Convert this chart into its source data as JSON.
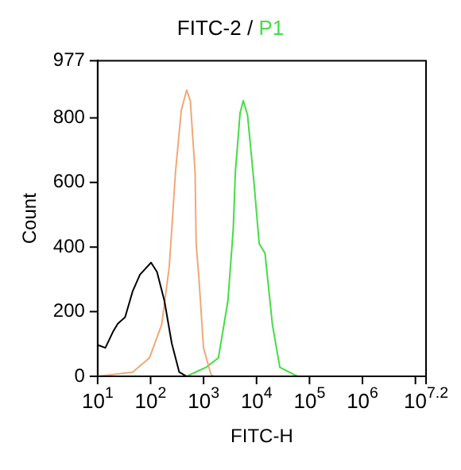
{
  "chart_data": {
    "type": "line",
    "title": "FITC-2 /",
    "xlabel": "FITC-H",
    "ylabel": "Count",
    "log": "x",
    "legend": "top",
    "grid": false,
    "marker": "none",
    "xlim": [
      10,
      15848932
    ],
    "xticks": [
      {
        "value": 10,
        "label": "10$^{1}$"
      },
      {
        "value": 100,
        "label": "10$^{2}$"
      },
      {
        "value": 1000,
        "label": "10$^{3}$"
      },
      {
        "value": 10000,
        "label": "10$^{4}$"
      },
      {
        "value": 100000,
        "label": "10$^{5}$"
      },
      {
        "value": 1000000,
        "label": "10$^{6}$"
      },
      {
        "value": 10000000,
        "label": null
      },
      {
        "value": 15848932,
        "label": "10$^{7.2}$"
      }
    ],
    "ylim": [
      0,
      977
    ],
    "yticks": [
      0,
      200,
      400,
      600,
      800,
      977
    ],
    "series": [
      {
        "color": "#000000",
        "x": [
          10,
          14,
          19.5,
          24,
          33,
          46,
          63,
          102,
          132,
          182,
          251,
          347,
          479
        ],
        "values": [
          97,
          88,
          138,
          163,
          183,
          264,
          315,
          352,
          323,
          234,
          102,
          13,
          0
        ]
      },
      {
        "color": "#f0a878",
        "x": [
          10,
          46,
          95,
          162,
          224,
          251,
          295,
          380,
          479,
          562,
          692,
          724,
          813,
          1000,
          1380,
          1549
        ],
        "values": [
          0,
          13,
          57,
          160,
          337,
          455,
          632,
          824,
          886,
          853,
          632,
          411,
          308,
          87,
          6,
          0
        ]
      },
      {
        "name": "P1",
        "color": "#44dd44",
        "x": [
          479,
          1122,
          1905,
          2884,
          3631,
          3981,
          4898,
          5623,
          6761,
          8913,
          11220,
          14450,
          19950,
          27540,
          58880
        ],
        "values": [
          0,
          28,
          57,
          234,
          455,
          632,
          816,
          853,
          809,
          603,
          411,
          381,
          160,
          28,
          0
        ]
      }
    ]
  }
}
